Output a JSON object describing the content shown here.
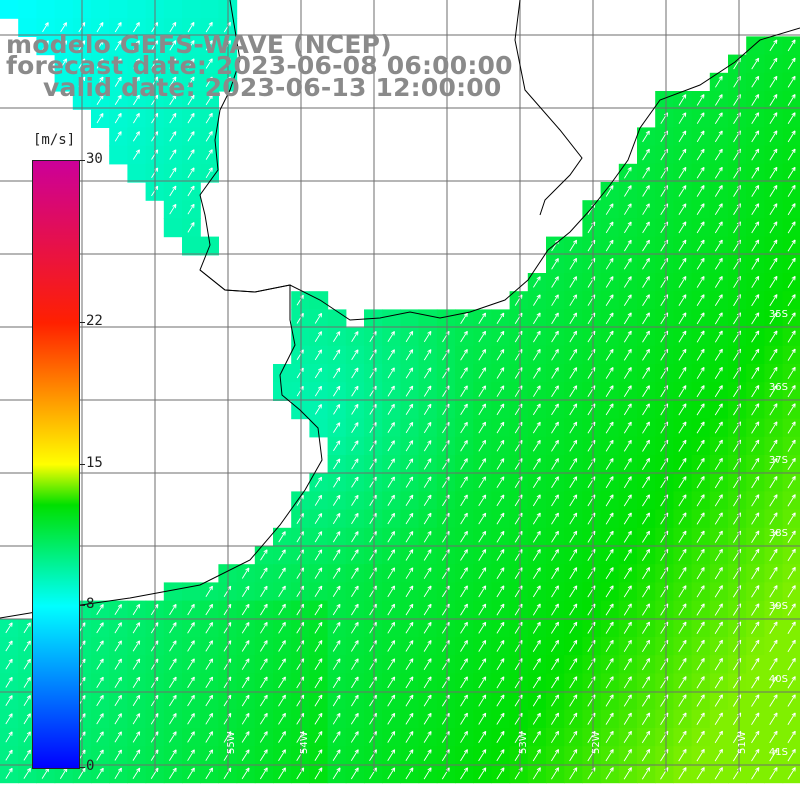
{
  "title": {
    "line1": "modelo GEFS-WAVE (NCEP)",
    "line2": "forecast date: 2023-06-08 06:00:00",
    "line3": "valid date: 2023-06-13 12:00:00"
  },
  "colorbar": {
    "unit": "[m/s]",
    "ticks": [
      "30",
      "22",
      "15",
      "8",
      "0"
    ],
    "tick_values": [
      30,
      22,
      15,
      8,
      0
    ],
    "min": 0,
    "max": 30,
    "stops": [
      {
        "value": 0,
        "color": "#0000ff"
      },
      {
        "value": 8,
        "color": "#00ffff"
      },
      {
        "value": 13,
        "color": "#00e000"
      },
      {
        "value": 15,
        "color": "#ffff00"
      },
      {
        "value": 22,
        "color": "#ff2000"
      },
      {
        "value": 30,
        "color": "#cc0099"
      }
    ]
  },
  "map": {
    "lat_labels": [
      "35S",
      "36S",
      "37S",
      "38S",
      "39S",
      "40S",
      "41S"
    ],
    "lon_labels": [
      "55W",
      "54W",
      "53W",
      "52W",
      "51W"
    ],
    "wind_direction": "SW",
    "land_color": "#ffffff",
    "coast_color": "#000000",
    "grid_color": "#6e6e6e"
  }
}
